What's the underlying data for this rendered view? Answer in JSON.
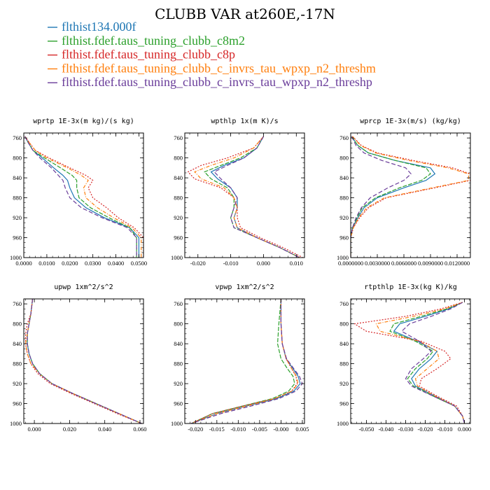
{
  "figure": {
    "title": "CLUBB VAR at260E,-17N"
  },
  "legend": [
    {
      "label": "flthist134.000f",
      "color": "#1f77b4"
    },
    {
      "label": "flthist.fdef.taus_tuning_clubb_c8m2",
      "color": "#2ca02c"
    },
    {
      "label": "flthist.fdef.taus_tuning_clubb_c8p",
      "color": "#d62728"
    },
    {
      "label": "flthist.fdef.taus_tuning_clubb_c_invrs_tau_wpxp_n2_threshm",
      "color": "#ff7f0e"
    },
    {
      "label": "flthist.fdef.taus_tuning_clubb_c_invrs_tau_wpxp_n2_threshp",
      "color": "#6a3d9a"
    }
  ],
  "chart_data": [
    {
      "type": "line",
      "title": "wprtp  1E-3x(m kg)/(s kg)",
      "ylim": [
        1000,
        750
      ],
      "xlim": [
        0,
        0.052
      ],
      "xticks": [
        0,
        0.01,
        0.02,
        0.03,
        0.04,
        0.05
      ],
      "xtick_labels": [
        "0.0000",
        "0.0100",
        "0.0200",
        "0.0300",
        "0.0400",
        "0.0500"
      ],
      "yticks": [
        760,
        800,
        840,
        880,
        920,
        960,
        1000
      ],
      "ytick_labels": [
        "760",
        "800",
        "840",
        "880",
        "920",
        "960",
        "1000"
      ],
      "pressure": [
        757,
        770,
        785,
        800,
        820,
        835,
        845,
        860,
        880,
        900,
        920,
        940,
        960,
        980,
        1000
      ],
      "series": [
        {
          "name": "flthist134.000f",
          "x": [
            0.0005,
            0.002,
            0.004,
            0.008,
            0.013,
            0.017,
            0.019,
            0.02,
            0.022,
            0.027,
            0.035,
            0.046,
            0.05,
            0.05,
            0.05
          ]
        },
        {
          "name": "flthist.fdef.taus_tuning_clubb_c8m2",
          "x": [
            0.0005,
            0.002,
            0.004,
            0.009,
            0.016,
            0.021,
            0.023,
            0.023,
            0.024,
            0.029,
            0.037,
            0.046,
            0.049,
            0.049,
            0.049
          ]
        },
        {
          "name": "flthist.fdef.taus_tuning_clubb_c8p",
          "x": [
            0.0005,
            0.0025,
            0.005,
            0.011,
            0.02,
            0.027,
            0.03,
            0.028,
            0.03,
            0.036,
            0.041,
            0.048,
            0.052,
            0.052,
            0.052
          ]
        },
        {
          "name": "flthist.fdef.taus_tuning_clubb_c_invrs_tau_wpxp_n2_threshm",
          "x": [
            0.0005,
            0.0025,
            0.005,
            0.01,
            0.019,
            0.025,
            0.028,
            0.026,
            0.027,
            0.032,
            0.039,
            0.047,
            0.051,
            0.051,
            0.051
          ]
        },
        {
          "name": "flthist.fdef.taus_tuning_clubb_c_invrs_tau_wpxp_n2_threshp",
          "x": [
            0.0005,
            0.002,
            0.004,
            0.007,
            0.012,
            0.015,
            0.017,
            0.018,
            0.02,
            0.025,
            0.034,
            0.045,
            0.049,
            0.049,
            0.049
          ]
        }
      ]
    },
    {
      "type": "line",
      "title": "wpthlp  1x(m K)/s",
      "ylim": [
        1000,
        750
      ],
      "xlim": [
        -0.024,
        0.0125
      ],
      "xticks": [
        -0.02,
        -0.01,
        0,
        0.01
      ],
      "xtick_labels": [
        "-0.020",
        "-0.010",
        "0.000",
        "0.010"
      ],
      "yticks": [
        760,
        800,
        840,
        880,
        920,
        960,
        1000
      ],
      "ytick_labels": [
        "760",
        "800",
        "840",
        "880",
        "920",
        "960",
        "1000"
      ],
      "pressure": [
        757,
        780,
        800,
        815,
        828,
        842,
        860,
        880,
        900,
        920,
        940,
        960,
        980,
        1000
      ],
      "series": [
        {
          "name": "flthist134.000f",
          "x": [
            0,
            -0.002,
            -0.006,
            -0.012,
            -0.016,
            -0.014,
            -0.01,
            -0.008,
            -0.008,
            -0.009,
            -0.008,
            -0.002,
            0.005,
            0.011
          ]
        },
        {
          "name": "flthist.fdef.taus_tuning_clubb_c8m2",
          "x": [
            0,
            -0.002,
            -0.007,
            -0.013,
            -0.018,
            -0.016,
            -0.011,
            -0.009,
            -0.009,
            -0.01,
            -0.009,
            -0.002,
            0.005,
            0.011
          ]
        },
        {
          "name": "flthist.fdef.taus_tuning_clubb_c8p",
          "x": [
            0,
            -0.003,
            -0.011,
            -0.019,
            -0.023,
            -0.021,
            -0.013,
            -0.009,
            -0.008,
            -0.008,
            -0.007,
            -0.001,
            0.006,
            0.012
          ]
        },
        {
          "name": "flthist.fdef.taus_tuning_clubb_c_invrs_tau_wpxp_n2_threshm",
          "x": [
            0,
            -0.003,
            -0.009,
            -0.016,
            -0.021,
            -0.019,
            -0.012,
            -0.009,
            -0.008,
            -0.009,
            -0.008,
            -0.002,
            0.005,
            0.011
          ]
        },
        {
          "name": "flthist.fdef.taus_tuning_clubb_c_invrs_tau_wpxp_n2_threshp",
          "x": [
            0,
            -0.002,
            -0.006,
            -0.011,
            -0.015,
            -0.013,
            -0.01,
            -0.008,
            -0.009,
            -0.01,
            -0.009,
            -0.002,
            0.005,
            0.011
          ]
        }
      ]
    },
    {
      "type": "line",
      "title": "wprcp  1E-3x(m/s) (kg/kg)",
      "ylim": [
        1000,
        750
      ],
      "xlim": [
        0,
        0.0135
      ],
      "xticks": [
        0,
        0.003,
        0.006,
        0.009,
        0.012
      ],
      "xtick_labels": [
        "0.0000000",
        "0.0030000",
        "0.0060000",
        "0.0090000",
        "0.0120000"
      ],
      "yticks": [
        760,
        800,
        840,
        880,
        920,
        960,
        1000
      ],
      "ytick_labels": [
        "760",
        "800",
        "840",
        "880",
        "920",
        "960",
        "1000"
      ],
      "pressure": [
        757,
        775,
        790,
        805,
        820,
        832,
        845,
        860,
        880,
        900,
        920,
        940,
        960,
        980,
        1000
      ],
      "series": [
        {
          "name": "flthist134.000f",
          "x": [
            0.0001,
            0.0008,
            0.002,
            0.005,
            0.009,
            0.0095,
            0.0085,
            0.006,
            0.003,
            0.0015,
            0.0008,
            0.0002,
            0,
            0,
            0
          ]
        },
        {
          "name": "flthist.fdef.taus_tuning_clubb_c8m2",
          "x": [
            0.0001,
            0.0008,
            0.002,
            0.005,
            0.0085,
            0.009,
            0.008,
            0.0055,
            0.0028,
            0.0013,
            0.0007,
            0.0002,
            0,
            0,
            0
          ]
        },
        {
          "name": "flthist.fdef.taus_tuning_clubb_c8p",
          "x": [
            0.0002,
            0.0012,
            0.003,
            0.007,
            0.0115,
            0.0135,
            0.0135,
            0.0095,
            0.004,
            0.002,
            0.001,
            0.0003,
            0,
            0,
            0
          ]
        },
        {
          "name": "flthist.fdef.taus_tuning_clubb_c_invrs_tau_wpxp_n2_threshm",
          "x": [
            0.0002,
            0.0011,
            0.0028,
            0.0065,
            0.011,
            0.0133,
            0.0133,
            0.0092,
            0.0038,
            0.0018,
            0.0009,
            0.0003,
            0,
            0,
            0
          ]
        },
        {
          "name": "flthist.fdef.taus_tuning_clubb_c_invrs_tau_wpxp_n2_threshp",
          "x": [
            0.0001,
            0.0006,
            0.0015,
            0.0035,
            0.0062,
            0.0068,
            0.006,
            0.0042,
            0.0022,
            0.0012,
            0.0006,
            0.0002,
            0,
            0,
            0
          ]
        }
      ]
    },
    {
      "type": "line",
      "title": "upwp  1xm^2/s^2",
      "ylim": [
        1000,
        750
      ],
      "xlim": [
        -0.006,
        0.062
      ],
      "xticks": [
        0,
        0.02,
        0.04,
        0.06
      ],
      "xtick_labels": [
        "0.000",
        "0.020",
        "0.040",
        "0.060"
      ],
      "yticks": [
        760,
        800,
        840,
        880,
        920,
        960,
        1000
      ],
      "ytick_labels": [
        "760",
        "800",
        "840",
        "880",
        "920",
        "960",
        "1000"
      ],
      "pressure": [
        750,
        780,
        800,
        820,
        840,
        860,
        880,
        900,
        920,
        940,
        960,
        980,
        1000
      ],
      "series": [
        {
          "name": "flthist134.000f",
          "x": [
            -0.001,
            -0.002,
            -0.003,
            -0.004,
            -0.004,
            -0.003,
            -0.001,
            0.003,
            0.01,
            0.022,
            0.035,
            0.048,
            0.061
          ]
        },
        {
          "name": "flthist.fdef.taus_tuning_clubb_c8m2",
          "x": [
            -0.001,
            -0.002,
            -0.003,
            -0.004,
            -0.004,
            -0.003,
            -0.001,
            0.003,
            0.01,
            0.022,
            0.035,
            0.048,
            0.061
          ]
        },
        {
          "name": "flthist.fdef.taus_tuning_clubb_c8p",
          "x": [
            -0.001,
            -0.002,
            -0.004,
            -0.005,
            -0.005,
            -0.004,
            -0.002,
            0.002,
            0.009,
            0.021,
            0.034,
            0.047,
            0.061
          ]
        },
        {
          "name": "flthist.fdef.taus_tuning_clubb_c_invrs_tau_wpxp_n2_threshm",
          "x": [
            -0.001,
            -0.002,
            -0.003,
            -0.004,
            -0.005,
            -0.004,
            -0.002,
            0.003,
            0.01,
            0.022,
            0.035,
            0.048,
            0.061
          ]
        },
        {
          "name": "flthist.fdef.taus_tuning_clubb_c_invrs_tau_wpxp_n2_threshp",
          "x": [
            -0.001,
            -0.002,
            -0.003,
            -0.004,
            -0.004,
            -0.003,
            -0.001,
            0.003,
            0.01,
            0.022,
            0.035,
            0.048,
            0.061
          ]
        }
      ]
    },
    {
      "type": "line",
      "title": "vpwp  1xm^2/s^2",
      "ylim": [
        1000,
        750
      ],
      "xlim": [
        -0.0225,
        0.0055
      ],
      "xticks": [
        -0.02,
        -0.015,
        -0.01,
        -0.005,
        0,
        0.005
      ],
      "xtick_labels": [
        "-0.020",
        "-0.015",
        "-0.010",
        "-0.005",
        "-0.000",
        "0.005"
      ],
      "yticks": [
        760,
        800,
        840,
        880,
        920,
        960,
        1000
      ],
      "ytick_labels": [
        "760",
        "800",
        "840",
        "880",
        "920",
        "960",
        "1000"
      ],
      "pressure": [
        750,
        800,
        840,
        870,
        890,
        905,
        920,
        935,
        950,
        965,
        980,
        1000
      ],
      "series": [
        {
          "name": "flthist134.000f",
          "x": [
            0,
            0,
            0.0003,
            0.0012,
            0.0028,
            0.004,
            0.0045,
            0.003,
            -0.001,
            -0.008,
            -0.015,
            -0.021
          ]
        },
        {
          "name": "flthist.fdef.taus_tuning_clubb_c8m2",
          "x": [
            0,
            -0.0005,
            -0.0008,
            0,
            0.0015,
            0.0028,
            0.0032,
            0.0018,
            -0.002,
            -0.009,
            -0.016,
            -0.021
          ]
        },
        {
          "name": "flthist.fdef.taus_tuning_clubb_c8p",
          "x": [
            0,
            0,
            0.0003,
            0.0012,
            0.0025,
            0.0035,
            0.0038,
            0.0025,
            -0.0015,
            -0.009,
            -0.016,
            -0.021
          ]
        },
        {
          "name": "flthist.fdef.taus_tuning_clubb_c_invrs_tau_wpxp_n2_threshm",
          "x": [
            0,
            0,
            0.0003,
            0.0012,
            0.0025,
            0.0036,
            0.004,
            0.0026,
            -0.0015,
            -0.008,
            -0.015,
            -0.021
          ]
        },
        {
          "name": "flthist.fdef.taus_tuning_clubb_c_invrs_tau_wpxp_n2_threshp",
          "x": [
            0,
            0,
            0.0003,
            0.0013,
            0.003,
            0.0043,
            0.005,
            0.0035,
            -0.0005,
            -0.007,
            -0.014,
            -0.021
          ]
        }
      ]
    },
    {
      "type": "line",
      "title": "rtpthlp  1E-3x(kg K)/kg",
      "ylim": [
        1000,
        750
      ],
      "xlim": [
        -0.058,
        0.003
      ],
      "xticks": [
        -0.05,
        -0.04,
        -0.03,
        -0.02,
        -0.01,
        0
      ],
      "xtick_labels": [
        "-0.050",
        "-0.040",
        "-0.030",
        "-0.020",
        "-0.010",
        "0.000"
      ],
      "yticks": [
        760,
        800,
        840,
        880,
        920,
        960,
        1000
      ],
      "ytick_labels": [
        "760",
        "800",
        "840",
        "880",
        "920",
        "960",
        "1000"
      ],
      "pressure": [
        757,
        770,
        785,
        800,
        815,
        835,
        855,
        870,
        890,
        910,
        925,
        945,
        965,
        985,
        1000
      ],
      "series": [
        {
          "name": "flthist134.000f",
          "x": [
            -0.001,
            -0.008,
            -0.02,
            -0.033,
            -0.036,
            -0.024,
            -0.014,
            -0.017,
            -0.023,
            -0.027,
            -0.025,
            -0.015,
            -0.005,
            -0.001,
            0
          ]
        },
        {
          "name": "flthist.fdef.taus_tuning_clubb_c8m2",
          "x": [
            -0.001,
            -0.009,
            -0.022,
            -0.036,
            -0.038,
            -0.025,
            -0.016,
            -0.019,
            -0.025,
            -0.029,
            -0.026,
            -0.016,
            -0.005,
            -0.001,
            0
          ]
        },
        {
          "name": "flthist.fdef.taus_tuning_clubb_c8p",
          "x": [
            -0.001,
            -0.012,
            -0.03,
            -0.056,
            -0.05,
            -0.022,
            -0.01,
            -0.007,
            -0.014,
            -0.022,
            -0.023,
            -0.014,
            -0.004,
            -0.001,
            0
          ]
        },
        {
          "name": "flthist.fdef.taus_tuning_clubb_c_invrs_tau_wpxp_n2_threshm",
          "x": [
            -0.001,
            -0.01,
            -0.026,
            -0.045,
            -0.043,
            -0.023,
            -0.014,
            -0.013,
            -0.019,
            -0.025,
            -0.024,
            -0.015,
            -0.005,
            -0.001,
            0
          ]
        },
        {
          "name": "flthist.fdef.taus_tuning_clubb_c_invrs_tau_wpxp_n2_threshp",
          "x": [
            -0.001,
            -0.007,
            -0.017,
            -0.028,
            -0.032,
            -0.023,
            -0.017,
            -0.021,
            -0.027,
            -0.03,
            -0.027,
            -0.016,
            -0.005,
            -0.001,
            0
          ]
        }
      ]
    }
  ]
}
